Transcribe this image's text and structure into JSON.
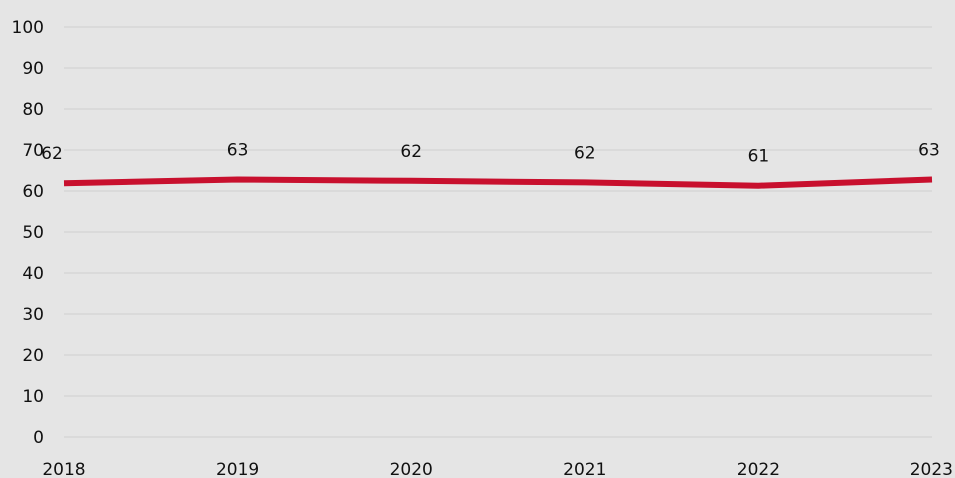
{
  "chart_data": {
    "type": "line",
    "title": "",
    "xlabel": "",
    "ylabel": "",
    "categories": [
      "2018",
      "2019",
      "2020",
      "2021",
      "2022",
      "2023"
    ],
    "series": [
      {
        "values": [
          62,
          63,
          62,
          62,
          61,
          63
        ],
        "data_labels": [
          "62",
          "63",
          "62",
          "62",
          "61",
          "63"
        ],
        "color": "#c8102e"
      }
    ],
    "plotted_values": [
      61.9,
      62.8,
      62.5,
      62.1,
      61.3,
      62.8
    ],
    "ylim": [
      0,
      100
    ],
    "yticks": [
      0,
      10,
      20,
      30,
      40,
      50,
      60,
      70,
      80,
      90,
      100
    ],
    "ytick_labels": [
      "0",
      "10",
      "20",
      "30",
      "40",
      "50",
      "60",
      "70",
      "80",
      "90",
      "100"
    ],
    "grid": true,
    "legend": "none",
    "background_color": "#e5e5e5",
    "grid_color": "#d0d0d0"
  }
}
